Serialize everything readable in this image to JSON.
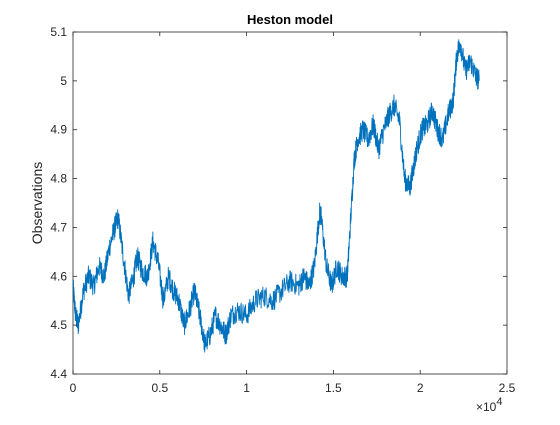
{
  "chart_data": {
    "type": "line",
    "title": "Heston model",
    "xlabel": "",
    "ylabel": "Observations",
    "x_multiplier_label": "×10",
    "x_multiplier_exponent": "4",
    "xlim": [
      0,
      25000
    ],
    "ylim": [
      4.4,
      5.1
    ],
    "x_ticks": [
      0,
      5000,
      10000,
      15000,
      20000,
      25000
    ],
    "x_tick_labels": [
      "0",
      "0.5",
      "1",
      "1.5",
      "2",
      "2.5"
    ],
    "y_ticks": [
      4.4,
      4.5,
      4.6,
      4.7,
      4.8,
      4.9,
      5.0,
      5.1
    ],
    "y_tick_labels": [
      "4.4",
      "4.5",
      "4.6",
      "4.7",
      "4.8",
      "4.9",
      "5",
      "5.1"
    ],
    "grid": false,
    "line_color": "#0072BD",
    "series": [
      {
        "x": [
          0,
          150,
          300,
          600,
          900,
          1200,
          1500,
          1800,
          2100,
          2400,
          2600,
          2900,
          3200,
          3500,
          3700,
          4000,
          4300,
          4600,
          4900,
          5200,
          5500,
          5800,
          6100,
          6400,
          6700,
          7000,
          7300,
          7600,
          7900,
          8200,
          8500,
          8800,
          9100,
          9500,
          10000,
          10500,
          11000,
          11500,
          12000,
          12500,
          13000,
          13300,
          13600,
          13900,
          14200,
          14300,
          14600,
          14900,
          15200,
          15500,
          15800,
          16000,
          16200,
          16400,
          16700,
          17000,
          17300,
          17600,
          17900,
          18200,
          18500,
          18800,
          19100,
          19400,
          19600,
          19800,
          20100,
          20400,
          20700,
          21000,
          21300,
          21600,
          21900,
          22100,
          22300,
          22600,
          22900,
          23200,
          23400
        ],
        "values": [
          4.58,
          4.52,
          4.5,
          4.57,
          4.6,
          4.58,
          4.62,
          4.6,
          4.66,
          4.7,
          4.72,
          4.64,
          4.56,
          4.6,
          4.64,
          4.61,
          4.6,
          4.67,
          4.63,
          4.55,
          4.6,
          4.57,
          4.55,
          4.5,
          4.53,
          4.57,
          4.52,
          4.46,
          4.48,
          4.52,
          4.5,
          4.48,
          4.52,
          4.53,
          4.52,
          4.55,
          4.56,
          4.55,
          4.57,
          4.59,
          4.58,
          4.6,
          4.58,
          4.62,
          4.73,
          4.72,
          4.62,
          4.58,
          4.62,
          4.6,
          4.6,
          4.72,
          4.84,
          4.88,
          4.9,
          4.88,
          4.91,
          4.86,
          4.9,
          4.93,
          4.95,
          4.92,
          4.8,
          4.78,
          4.82,
          4.86,
          4.9,
          4.91,
          4.94,
          4.9,
          4.88,
          4.93,
          4.96,
          5.05,
          5.08,
          5.02,
          5.04,
          5.01,
          5.0
        ]
      }
    ]
  }
}
